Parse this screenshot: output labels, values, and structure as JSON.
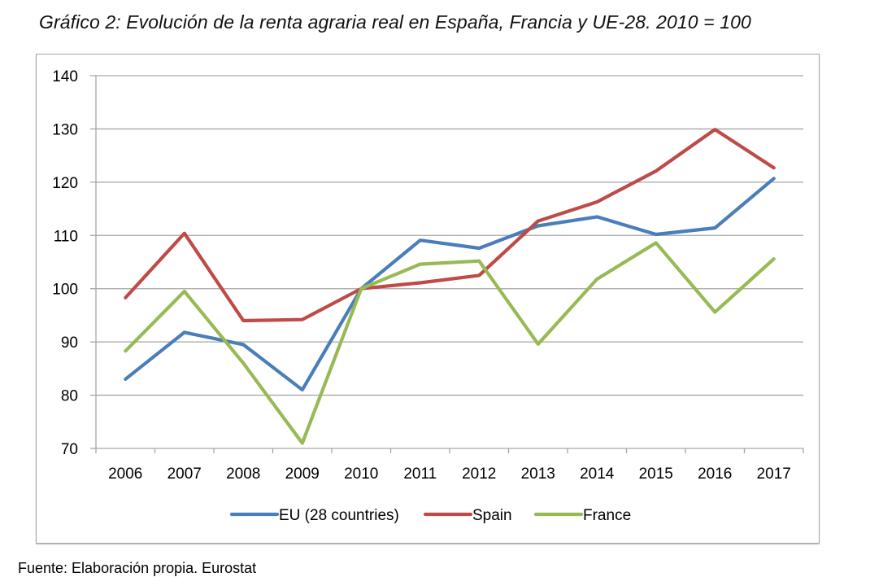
{
  "title": "Gráfico 2: Evolución de la renta agraria real en España, Francia y UE-28. 2010 = 100",
  "source": "Fuente: Elaboración propia. Eurostat",
  "chart_data": {
    "type": "line",
    "title": "Gráfico 2: Evolución de la renta agraria real en España, Francia y UE-28. 2010 = 100",
    "xlabel": "",
    "ylabel": "",
    "categories": [
      "2006",
      "2007",
      "2008",
      "2009",
      "2010",
      "2011",
      "2012",
      "2013",
      "2014",
      "2015",
      "2016",
      "2017"
    ],
    "ylim": [
      70,
      140
    ],
    "yticks": [
      70,
      80,
      90,
      100,
      110,
      120,
      130,
      140
    ],
    "grid": true,
    "legend_position": "bottom",
    "series": [
      {
        "name": "EU (28 countries)",
        "color": "#4a7ebb",
        "values": [
          83.0,
          91.8,
          89.5,
          81.0,
          100.0,
          109.1,
          107.6,
          111.8,
          113.5,
          110.2,
          111.4,
          120.7
        ]
      },
      {
        "name": "Spain",
        "color": "#be4b48",
        "values": [
          98.3,
          110.4,
          94.0,
          94.2,
          100.0,
          101.1,
          102.5,
          112.7,
          116.3,
          122.1,
          129.9,
          122.7
        ]
      },
      {
        "name": "France",
        "color": "#98b954",
        "values": [
          88.3,
          99.5,
          86.0,
          71.0,
          100.0,
          104.6,
          105.2,
          89.6,
          101.8,
          108.6,
          95.6,
          105.6
        ]
      }
    ]
  }
}
